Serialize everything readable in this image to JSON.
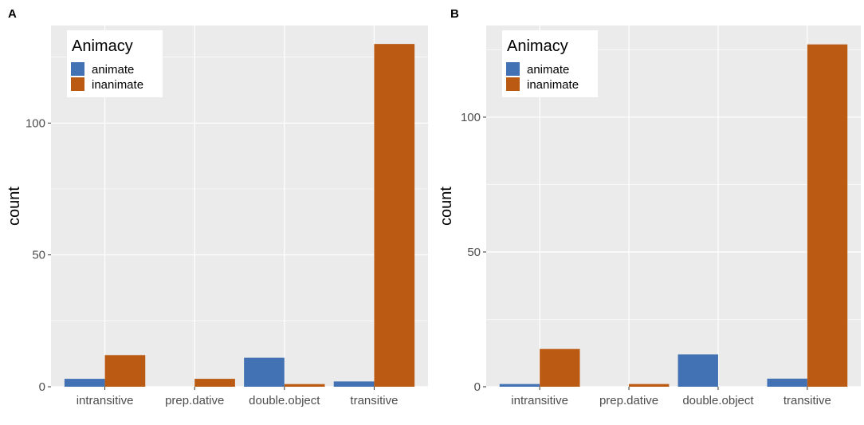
{
  "chart_data": [
    {
      "panel": "A",
      "type": "bar",
      "categories": [
        "intransitive",
        "prep.dative",
        "double.object",
        "transitive"
      ],
      "series": [
        {
          "name": "animate",
          "values": [
            3,
            0,
            11,
            2
          ]
        },
        {
          "name": "inanimate",
          "values": [
            12,
            3,
            1,
            130
          ]
        }
      ],
      "ylabel": "count",
      "xlabel": "",
      "ylim": [
        0,
        137
      ],
      "yticks": [
        0,
        50,
        100
      ],
      "legend": {
        "title": "Animacy",
        "position": "top-left"
      },
      "grid": true
    },
    {
      "panel": "B",
      "type": "bar",
      "categories": [
        "intransitive",
        "prep.dative",
        "double.object",
        "transitive"
      ],
      "series": [
        {
          "name": "animate",
          "values": [
            1,
            0,
            12,
            3
          ]
        },
        {
          "name": "inanimate",
          "values": [
            14,
            1,
            0,
            127
          ]
        }
      ],
      "ylabel": "count",
      "xlabel": "",
      "ylim": [
        0,
        134
      ],
      "yticks": [
        0,
        50,
        100
      ],
      "legend": {
        "title": "Animacy",
        "position": "top-left"
      },
      "grid": true
    }
  ],
  "colors": {
    "animate": "#4272B3",
    "inanimate": "#BA5A13",
    "panel_bg": "#EBEBEB",
    "grid": "#FFFFFF"
  }
}
